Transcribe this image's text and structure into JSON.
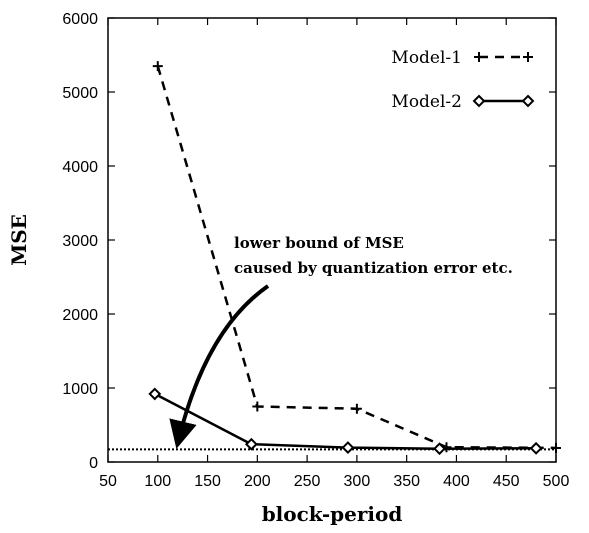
{
  "chart_data": {
    "type": "line",
    "xlabel": "block-period",
    "ylabel": "MSE",
    "xlim": [
      50,
      500
    ],
    "ylim": [
      0,
      6000
    ],
    "xticks": [
      50,
      100,
      150,
      200,
      250,
      300,
      350,
      400,
      450,
      500
    ],
    "yticks": [
      0,
      1000,
      2000,
      3000,
      4000,
      5000,
      6000
    ],
    "grid": false,
    "legend_position": "top-right",
    "series": [
      {
        "name": "Model-1",
        "style": "dashed",
        "marker": "plus",
        "color": "#000000",
        "x": [
          100,
          200,
          300,
          390,
          500
        ],
        "y": [
          5350,
          750,
          720,
          200,
          190
        ]
      },
      {
        "name": "Model-2",
        "style": "solid",
        "marker": "diamond",
        "color": "#000000",
        "x": [
          97,
          194,
          291,
          383,
          480
        ],
        "y": [
          920,
          240,
          195,
          180,
          185
        ]
      }
    ],
    "reference_line": {
      "y": 170,
      "style": "dotted"
    },
    "annotation": {
      "lines": [
        "lower bound of MSE",
        "caused by quantization error etc."
      ],
      "arrow_to": {
        "x": 120,
        "y": 170
      }
    }
  }
}
